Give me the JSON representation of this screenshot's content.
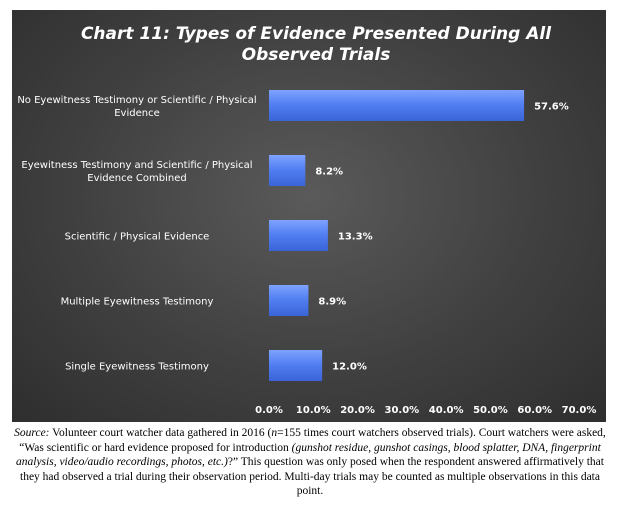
{
  "chart_data": {
    "type": "bar",
    "orientation": "horizontal",
    "title_lines": [
      "Chart 11: Types of Evidence Presented During All",
      "Observed Trials"
    ],
    "categories": [
      [
        "No Eyewitness Testimony or Scientific / Physical",
        "Evidence"
      ],
      [
        "Eyewitness Testimony and Scientific / Physical",
        "Evidence Combined"
      ],
      [
        "Scientific / Physical Evidence"
      ],
      [
        "Multiple Eyewitness Testimony"
      ],
      [
        "Single Eyewitness Testimony"
      ]
    ],
    "values": [
      57.6,
      8.2,
      13.3,
      8.9,
      12.0
    ],
    "value_labels": [
      "57.6%",
      "8.2%",
      "13.3%",
      "8.9%",
      "12.0%"
    ],
    "xlim": [
      0,
      70
    ],
    "x_ticks": [
      "0.0%",
      "10.0%",
      "20.0%",
      "30.0%",
      "40.0%",
      "50.0%",
      "60.0%",
      "70.0%"
    ],
    "grid": false,
    "bar_color": "#4f7df0"
  },
  "caption": {
    "source_label": "Source:",
    "text_a": " Volunteer court watcher data gathered in 2016 (",
    "n_italic": "n",
    "text_b": "=155 times court watchers observed trials). Court watchers were asked, “Was scientific or hard evidence proposed for introduction ",
    "examples_italic": "(gunshot residue, gunshot casings, blood splatter, DNA, fingerprint analysis, video/audio recordings, photos, etc.)",
    "text_c": "?” This question was only posed when the respondent answered affirmatively that they had observed a trial during their observation period. Multi-day trials may be counted as multiple observations in this data point."
  }
}
